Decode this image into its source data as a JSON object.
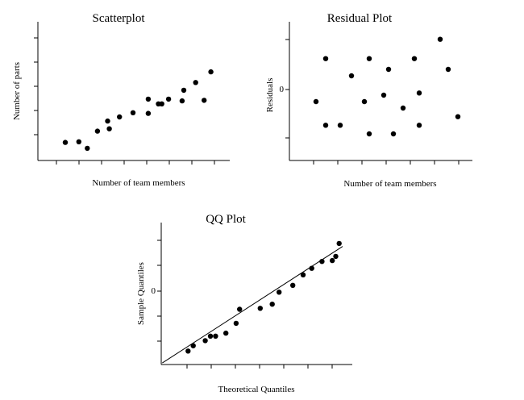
{
  "chart_data": [
    {
      "type": "scatter",
      "title": "Scatterplot",
      "xlabel": "Number of team members",
      "ylabel": "Number of parts",
      "grid": false,
      "points": [
        [
          0.1,
          0.105
        ],
        [
          0.18,
          0.11
        ],
        [
          0.23,
          0.055
        ],
        [
          0.29,
          0.2
        ],
        [
          0.35,
          0.285
        ],
        [
          0.36,
          0.22
        ],
        [
          0.42,
          0.32
        ],
        [
          0.5,
          0.355
        ],
        [
          0.59,
          0.47
        ],
        [
          0.59,
          0.35
        ],
        [
          0.65,
          0.43
        ],
        [
          0.67,
          0.43
        ],
        [
          0.71,
          0.47
        ],
        [
          0.79,
          0.455
        ],
        [
          0.8,
          0.545
        ],
        [
          0.87,
          0.61
        ],
        [
          0.92,
          0.46
        ],
        [
          0.96,
          0.7
        ]
      ]
    },
    {
      "type": "scatter",
      "title": "Residual Plot",
      "xlabel": "Number of team members",
      "ylabel": "Residuals",
      "y_ticks": [
        {
          "value": 0,
          "label": "0"
        }
      ],
      "reference_line": false,
      "grid": false,
      "points": [
        [
          0.1,
          -0.6
        ],
        [
          0.16,
          1.4
        ],
        [
          0.16,
          -1.7
        ],
        [
          0.25,
          -1.7
        ],
        [
          0.32,
          0.6
        ],
        [
          0.4,
          -0.6
        ],
        [
          0.43,
          1.4
        ],
        [
          0.43,
          -2.1
        ],
        [
          0.52,
          -0.3
        ],
        [
          0.55,
          0.9
        ],
        [
          0.58,
          -2.1
        ],
        [
          0.64,
          -0.9
        ],
        [
          0.71,
          1.4
        ],
        [
          0.74,
          -0.2
        ],
        [
          0.74,
          -1.7
        ],
        [
          0.87,
          2.3
        ],
        [
          0.92,
          0.9
        ],
        [
          0.98,
          -1.3
        ]
      ]
    },
    {
      "type": "scatter",
      "title": "QQ Plot",
      "xlabel": "Theoretical Quantiles",
      "ylabel": "Sample Quantiles",
      "y_ticks": [
        {
          "value": 0,
          "label": "0"
        }
      ],
      "reference_line": true,
      "grid": false,
      "points": [
        [
          0.1,
          -2.05
        ],
        [
          0.13,
          -1.87
        ],
        [
          0.2,
          -1.7
        ],
        [
          0.23,
          -1.55
        ],
        [
          0.26,
          -1.55
        ],
        [
          0.32,
          -1.45
        ],
        [
          0.38,
          -1.12
        ],
        [
          0.4,
          -0.65
        ],
        [
          0.52,
          -0.62
        ],
        [
          0.59,
          -0.48
        ],
        [
          0.63,
          -0.08
        ],
        [
          0.71,
          0.15
        ],
        [
          0.77,
          0.5
        ],
        [
          0.82,
          0.72
        ],
        [
          0.88,
          0.95
        ],
        [
          0.94,
          0.98
        ],
        [
          0.96,
          1.12
        ],
        [
          0.98,
          1.55
        ]
      ]
    }
  ]
}
